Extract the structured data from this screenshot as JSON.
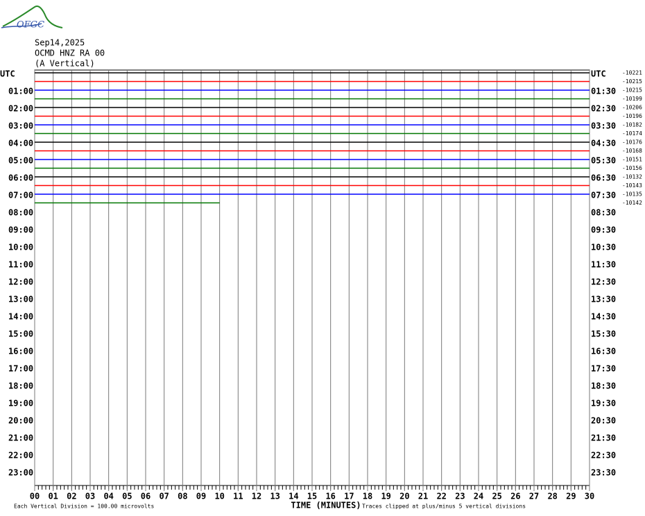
{
  "chart_data": {
    "type": "helicorder",
    "logo": "OFGC",
    "date": "Sep14,2025",
    "station": "OCMD HNZ RA 00",
    "component": "(A Vertical)",
    "xlabel": "TIME (MINUTES)",
    "scale_note": "Each Vertical Division =  100.00 microvolts",
    "clip_note": "Traces clipped at plus/minus 5 vertical divisions",
    "xlim": [
      0,
      30
    ],
    "xticks": [
      {
        "value": 0,
        "label": "00"
      },
      {
        "value": 1,
        "label": "01"
      },
      {
        "value": 2,
        "label": "02"
      },
      {
        "value": 3,
        "label": "03"
      },
      {
        "value": 4,
        "label": "04"
      },
      {
        "value": 5,
        "label": "05"
      },
      {
        "value": 6,
        "label": "06"
      },
      {
        "value": 7,
        "label": "07"
      },
      {
        "value": 8,
        "label": "08"
      },
      {
        "value": 9,
        "label": "09"
      },
      10,
      11,
      12,
      13,
      14,
      15,
      16,
      17,
      18,
      19,
      20,
      21,
      22,
      23,
      24,
      25,
      26,
      27,
      28,
      29,
      30
    ],
    "minor_tick_step": 0.2,
    "left_labels": [
      "UTC",
      "01:00",
      "02:00",
      "03:00",
      "04:00",
      "05:00",
      "06:00",
      "07:00",
      "08:00",
      "09:00",
      "10:00",
      "11:00",
      "12:00",
      "13:00",
      "14:00",
      "15:00",
      "16:00",
      "17:00",
      "18:00",
      "19:00",
      "20:00",
      "21:00",
      "22:00",
      "23:00"
    ],
    "right_labels": [
      "UTC",
      "01:30",
      "02:30",
      "03:30",
      "04:30",
      "05:30",
      "06:30",
      "07:30",
      "08:30",
      "09:30",
      "10:30",
      "11:30",
      "12:30",
      "13:30",
      "14:30",
      "15:30",
      "16:30",
      "17:30",
      "18:30",
      "19:30",
      "20:30",
      "21:30",
      "22:30",
      "23:30"
    ],
    "traces": [
      {
        "color": "#000000",
        "offset": -10221,
        "end": 30
      },
      {
        "color": "#ff0000",
        "offset": -10215,
        "end": 30
      },
      {
        "color": "#0000ff",
        "offset": -10215,
        "end": 30
      },
      {
        "color": "#007700",
        "offset": -10199,
        "end": 30
      },
      {
        "color": "#000000",
        "offset": -10206,
        "end": 30
      },
      {
        "color": "#ff0000",
        "offset": -10196,
        "end": 30
      },
      {
        "color": "#0000ff",
        "offset": -10182,
        "end": 30
      },
      {
        "color": "#007700",
        "offset": -10174,
        "end": 30
      },
      {
        "color": "#000000",
        "offset": -10176,
        "end": 30
      },
      {
        "color": "#ff0000",
        "offset": -10168,
        "end": 30
      },
      {
        "color": "#0000ff",
        "offset": -10151,
        "end": 30
      },
      {
        "color": "#007700",
        "offset": -10156,
        "end": 30
      },
      {
        "color": "#000000",
        "offset": -10132,
        "end": 30
      },
      {
        "color": "#ff0000",
        "offset": -10143,
        "end": 30
      },
      {
        "color": "#0000ff",
        "offset": -10135,
        "end": 30
      },
      {
        "color": "#007700",
        "offset": -10142,
        "end": 10
      }
    ]
  }
}
